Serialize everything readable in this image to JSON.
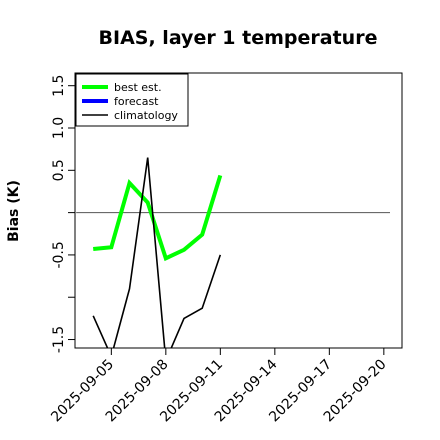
{
  "chart_data": {
    "type": "line",
    "title": "BIAS, layer 1 temperature",
    "xlabel": "",
    "ylabel": "Bias (K)",
    "xlim": [
      "2025-09-03",
      "2025-09-21"
    ],
    "ylim": [
      -1.6,
      1.65
    ],
    "x_ticks": [
      "2025-09-05",
      "2025-09-08",
      "2025-09-11",
      "2025-09-14",
      "2025-09-17",
      "2025-09-20"
    ],
    "x_tick_colors": [
      "#000000",
      "#000000",
      "#228b22",
      "#000000",
      "#000000",
      "#000000"
    ],
    "y_ticks": [
      -1.5,
      -1.0,
      -0.5,
      0.0,
      0.5,
      1.0,
      1.5
    ],
    "y_tick_labels": [
      "-1.5",
      "",
      "-0.5",
      "",
      "0.5",
      "1.0",
      "1.5"
    ],
    "zero_line": 0,
    "grid": false,
    "legend_position": "top-left",
    "series": [
      {
        "name": "best est.",
        "color": "#00ff00",
        "x": [
          "2025-09-04",
          "2025-09-05",
          "2025-09-06",
          "2025-09-07",
          "2025-09-08",
          "2025-09-09",
          "2025-09-10",
          "2025-09-11"
        ],
        "values": [
          -0.43,
          -0.41,
          0.35,
          0.12,
          -0.54,
          -0.44,
          -0.26,
          0.44
        ]
      },
      {
        "name": "forecast",
        "color": "#0000ff",
        "x": [],
        "values": []
      },
      {
        "name": "climatology",
        "color": "#000000",
        "x": [
          "2025-09-04",
          "2025-09-05",
          "2025-09-06",
          "2025-09-07",
          "2025-09-08",
          "2025-09-09",
          "2025-09-10",
          "2025-09-11"
        ],
        "values": [
          -1.22,
          -1.7,
          -0.9,
          0.65,
          -1.75,
          -1.25,
          -1.13,
          -0.5
        ]
      }
    ]
  }
}
